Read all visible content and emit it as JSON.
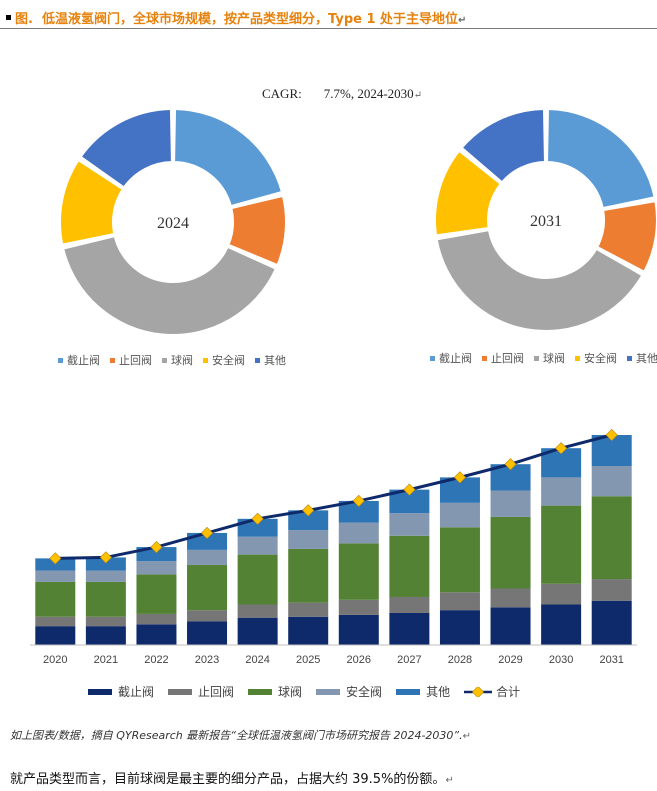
{
  "figure": {
    "label": "图.",
    "title": "低温液氢阀门，全球市场规模，按产品类型细分，Type 1 处于主导地位",
    "para_mark": "↵",
    "cagr_label": "CAGR:",
    "cagr_value": "7.7%, 2024-2030"
  },
  "colors": {
    "title": "#e6820e",
    "pie": [
      "#5b9bd5",
      "#ed7d31",
      "#a5a5a5",
      "#ffc000",
      "#4472c4"
    ],
    "bars": [
      "#0f2a6b",
      "#767676",
      "#548235",
      "#8497b0",
      "#2e75b6"
    ],
    "total_line": "#0f2a6b",
    "total_marker": "#ffc000"
  },
  "chart_data": [
    {
      "type": "pie",
      "variant": "donut",
      "center_label": "2024",
      "labels": [
        "截止阀",
        "止回阀",
        "球阀",
        "安全阀",
        "其他"
      ],
      "values": [
        21,
        10.5,
        40,
        13,
        15.5
      ]
    },
    {
      "type": "pie",
      "variant": "donut",
      "center_label": "2031",
      "labels": [
        "截止阀",
        "止回阀",
        "球阀",
        "安全阀",
        "其他"
      ],
      "values": [
        22,
        11,
        39.5,
        13.5,
        14
      ]
    },
    {
      "type": "bar",
      "stacked": true,
      "categories": [
        "2020",
        "2021",
        "2022",
        "2023",
        "2024",
        "2025",
        "2026",
        "2027",
        "2028",
        "2029",
        "2030",
        "2031"
      ],
      "series": [
        {
          "name": "截止阀",
          "values": [
            20,
            20,
            22,
            25,
            29,
            30,
            32,
            34,
            37,
            40,
            43,
            47
          ]
        },
        {
          "name": "止回阀",
          "values": [
            10,
            10,
            11,
            12,
            14,
            15,
            16,
            17,
            19,
            20,
            22,
            23
          ]
        },
        {
          "name": "球阀",
          "values": [
            37,
            37,
            42,
            48,
            53,
            57,
            60,
            65,
            69,
            76,
            83,
            88
          ]
        },
        {
          "name": "安全阀",
          "values": [
            12,
            12,
            14,
            16,
            19,
            20,
            22,
            24,
            26,
            28,
            30,
            32
          ]
        },
        {
          "name": "其他",
          "values": [
            13,
            14,
            15,
            18,
            19,
            21,
            23,
            25,
            27,
            28,
            31,
            33
          ]
        }
      ],
      "total": {
        "name": "合计",
        "values": [
          92,
          93,
          104,
          119,
          134,
          143,
          153,
          165,
          178,
          192,
          209,
          223
        ]
      },
      "ylim": [
        0,
        240
      ],
      "grid": false,
      "legend_position": "bottom"
    }
  ],
  "legend_labels": {
    "jiezhi": "截止阀",
    "zhihui": "止回阀",
    "qiu": "球阀",
    "anquan": "安全阀",
    "qita": "其他",
    "heji": "合计"
  },
  "source_text": "如上图表/数据，摘自 QYResearch 最新报告“全球低温液氢阀门市场研究报告 2024-2030”.",
  "body_text": "就产品类型而言，目前球阀是最主要的细分产品，占据大约 39.5%的份额。"
}
